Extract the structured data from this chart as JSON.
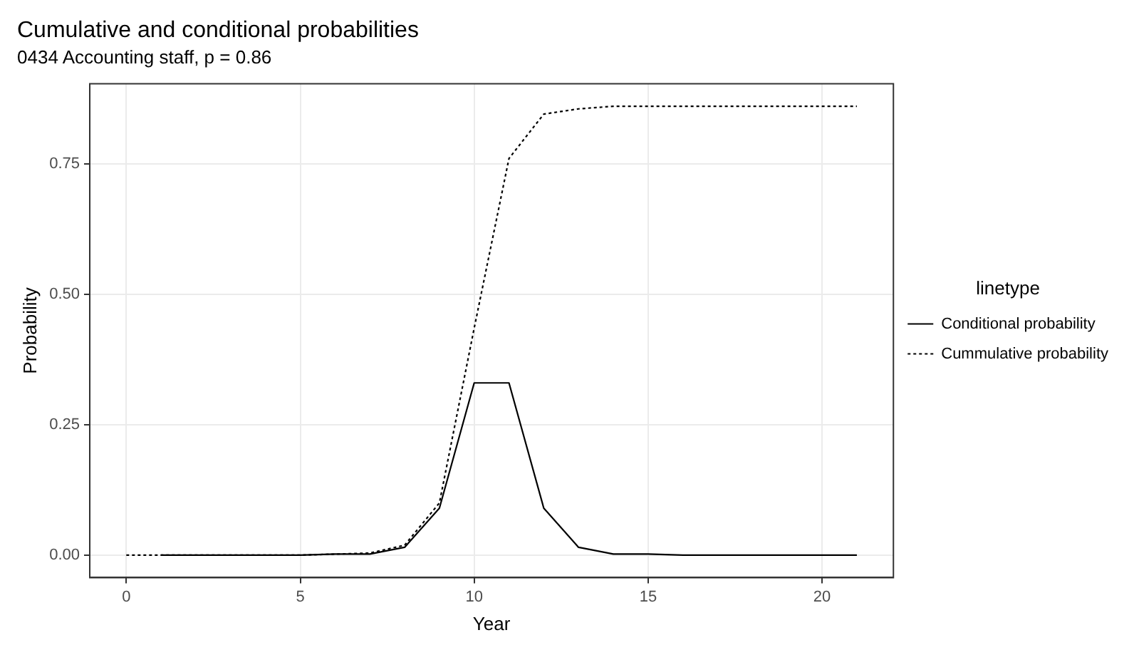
{
  "chart_data": {
    "type": "line",
    "title": "Cumulative and conditional probabilities",
    "subtitle": "0434 Accounting staff, p = 0.86",
    "xlabel": "Year",
    "ylabel": "Probability",
    "legend_title": "linetype",
    "legend": "right",
    "grid": true,
    "marker": "none",
    "xlim": [
      -1.05,
      22.05
    ],
    "xticks": [
      0,
      5,
      10,
      15,
      20
    ],
    "ylim": [
      -0.043,
      0.903
    ],
    "yticks": [
      {
        "value": 0,
        "label": "0.00"
      },
      {
        "value": 0.25,
        "label": "0.25"
      },
      {
        "value": 0.5,
        "label": "0.50"
      },
      {
        "value": 0.75,
        "label": "0.75"
      }
    ],
    "series": [
      {
        "name": "Conditional probability",
        "color": "#000000",
        "line_style": "solid",
        "x": [
          1,
          2,
          3,
          4,
          5,
          6,
          7,
          8,
          9,
          10,
          11,
          12,
          13,
          14,
          15,
          16,
          17,
          18,
          19,
          20,
          21
        ],
        "values": [
          0,
          0,
          0,
          0,
          0,
          0.002,
          0.002,
          0.015,
          0.09,
          0.33,
          0.33,
          0.09,
          0.015,
          0.002,
          0.002,
          0,
          0,
          0,
          0,
          0,
          0
        ]
      },
      {
        "name": "Cummulative probability",
        "color": "#000000",
        "line_style": "dotted",
        "x": [
          0,
          1,
          2,
          3,
          4,
          5,
          6,
          7,
          8,
          9,
          10,
          11,
          12,
          13,
          14,
          15,
          16,
          17,
          18,
          19,
          20,
          21
        ],
        "values": [
          0,
          0,
          0,
          0,
          0,
          0,
          0.002,
          0.004,
          0.019,
          0.1,
          0.435,
          0.76,
          0.845,
          0.855,
          0.86,
          0.86,
          0.86,
          0.86,
          0.86,
          0.86,
          0.86,
          0.86
        ]
      }
    ]
  }
}
